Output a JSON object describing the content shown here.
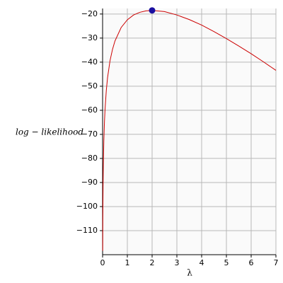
{
  "chart_data": {
    "type": "line",
    "xlabel": "λ",
    "ylabel": "log − likelihood",
    "x": [
      0.005,
      0.01,
      0.02,
      0.03,
      0.05,
      0.075,
      0.1,
      0.15,
      0.2,
      0.3,
      0.4,
      0.5,
      0.75,
      1,
      1.25,
      1.5,
      1.75,
      2,
      2.5,
      3,
      3.5,
      4,
      4.5,
      5,
      5.5,
      6,
      6.5,
      7
    ],
    "series": [
      {
        "color": "#cc0000",
        "values": [
          -118.4,
          -104.6,
          -90.8,
          -82.8,
          -72.8,
          -64.9,
          -59.4,
          -51.8,
          -46.5,
          -39.4,
          -34.7,
          -31.2,
          -25.6,
          -22.4,
          -20.4,
          -19.3,
          -18.7,
          -18.5,
          -19.0,
          -20.4,
          -22.3,
          -24.6,
          -27.3,
          -30.2,
          -33.3,
          -36.5,
          -39.9,
          -43.4
        ]
      }
    ],
    "points": [
      {
        "x": 2,
        "y": -18.5,
        "color": "#1a0fa0"
      }
    ],
    "xlim": [
      0,
      7
    ],
    "ylim": [
      -120,
      -17.7
    ],
    "xticks": [
      0,
      1,
      2,
      3,
      4,
      5,
      6,
      7
    ],
    "yticks": [
      {
        "value": -110,
        "label": "−110"
      },
      {
        "value": -100,
        "label": "−100"
      },
      {
        "value": -90,
        "label": "−90"
      },
      {
        "value": -80,
        "label": "−80"
      },
      {
        "value": -70,
        "label": "−70"
      },
      {
        "value": -60,
        "label": "−60"
      },
      {
        "value": -50,
        "label": "−50"
      },
      {
        "value": -40,
        "label": "−40"
      },
      {
        "value": -30,
        "label": "−30"
      },
      {
        "value": -20,
        "label": "−20"
      }
    ],
    "grid": true
  }
}
